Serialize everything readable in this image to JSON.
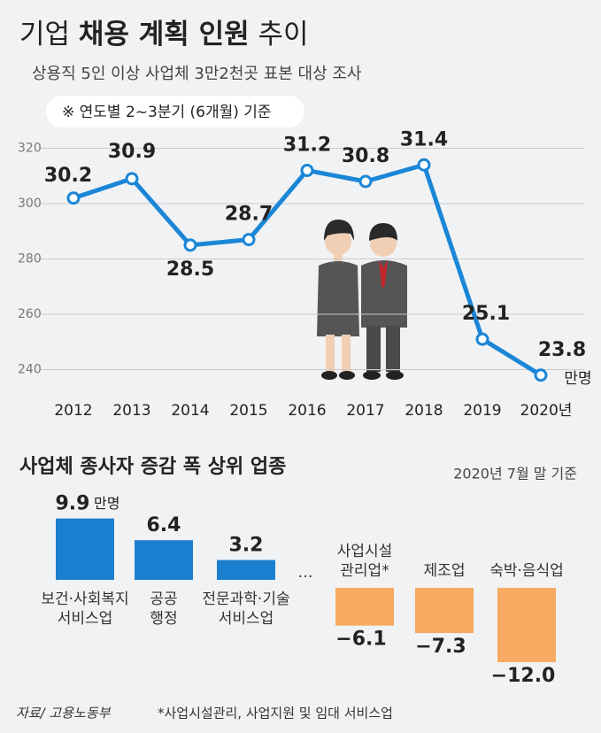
{
  "chart_data": [
    {
      "type": "line",
      "title": [
        "기업",
        "채용 계획 인원",
        "추이"
      ],
      "subtitle": "상용직 5인 이상 사업체 3만2천곳 표본 대상 조사",
      "note": "※ 연도별 2~3분기 (6개월) 기준",
      "categories": [
        "2012",
        "2013",
        "2014",
        "2015",
        "2016",
        "2017",
        "2018",
        "2019",
        "2020년"
      ],
      "values": [
        302,
        309,
        285,
        287,
        312,
        308,
        314,
        251,
        238
      ],
      "value_labels": [
        "30.2",
        "30.9",
        "28.5",
        "28.7",
        "31.2",
        "30.8",
        "31.4",
        "25.1",
        "23.8"
      ],
      "unit": "만명",
      "color": "#1b86d6",
      "ylim": [
        236,
        324
      ],
      "yticks": [
        240,
        260,
        280,
        300,
        320
      ],
      "grid": true
    },
    {
      "type": "bar",
      "title": "사업체 종사자 증감 폭 상위 업종",
      "subtitle": "2020년 7월 말 기준",
      "categories": [
        "보건·사회복지\n서비스업",
        "공공\n행정",
        "전문과학·기술\n서비스업",
        "…",
        "사업시설\n관리업*",
        "제조업",
        "숙박·음식업"
      ],
      "values": [
        9.9,
        6.4,
        3.2,
        null,
        -6.1,
        -7.3,
        -12.0
      ],
      "value_labels": [
        "9.9",
        "6.4",
        "3.2",
        null,
        "−6.1",
        "−7.3",
        "−12.0"
      ],
      "unit": "만명",
      "color": "#1b7fcf",
      "negative_color": "#f7aa62"
    }
  ],
  "footer": {
    "source": "자료/ 고용노동부",
    "footnote": "*사업시설관리, 사업지원 및 임대 서비스업"
  }
}
